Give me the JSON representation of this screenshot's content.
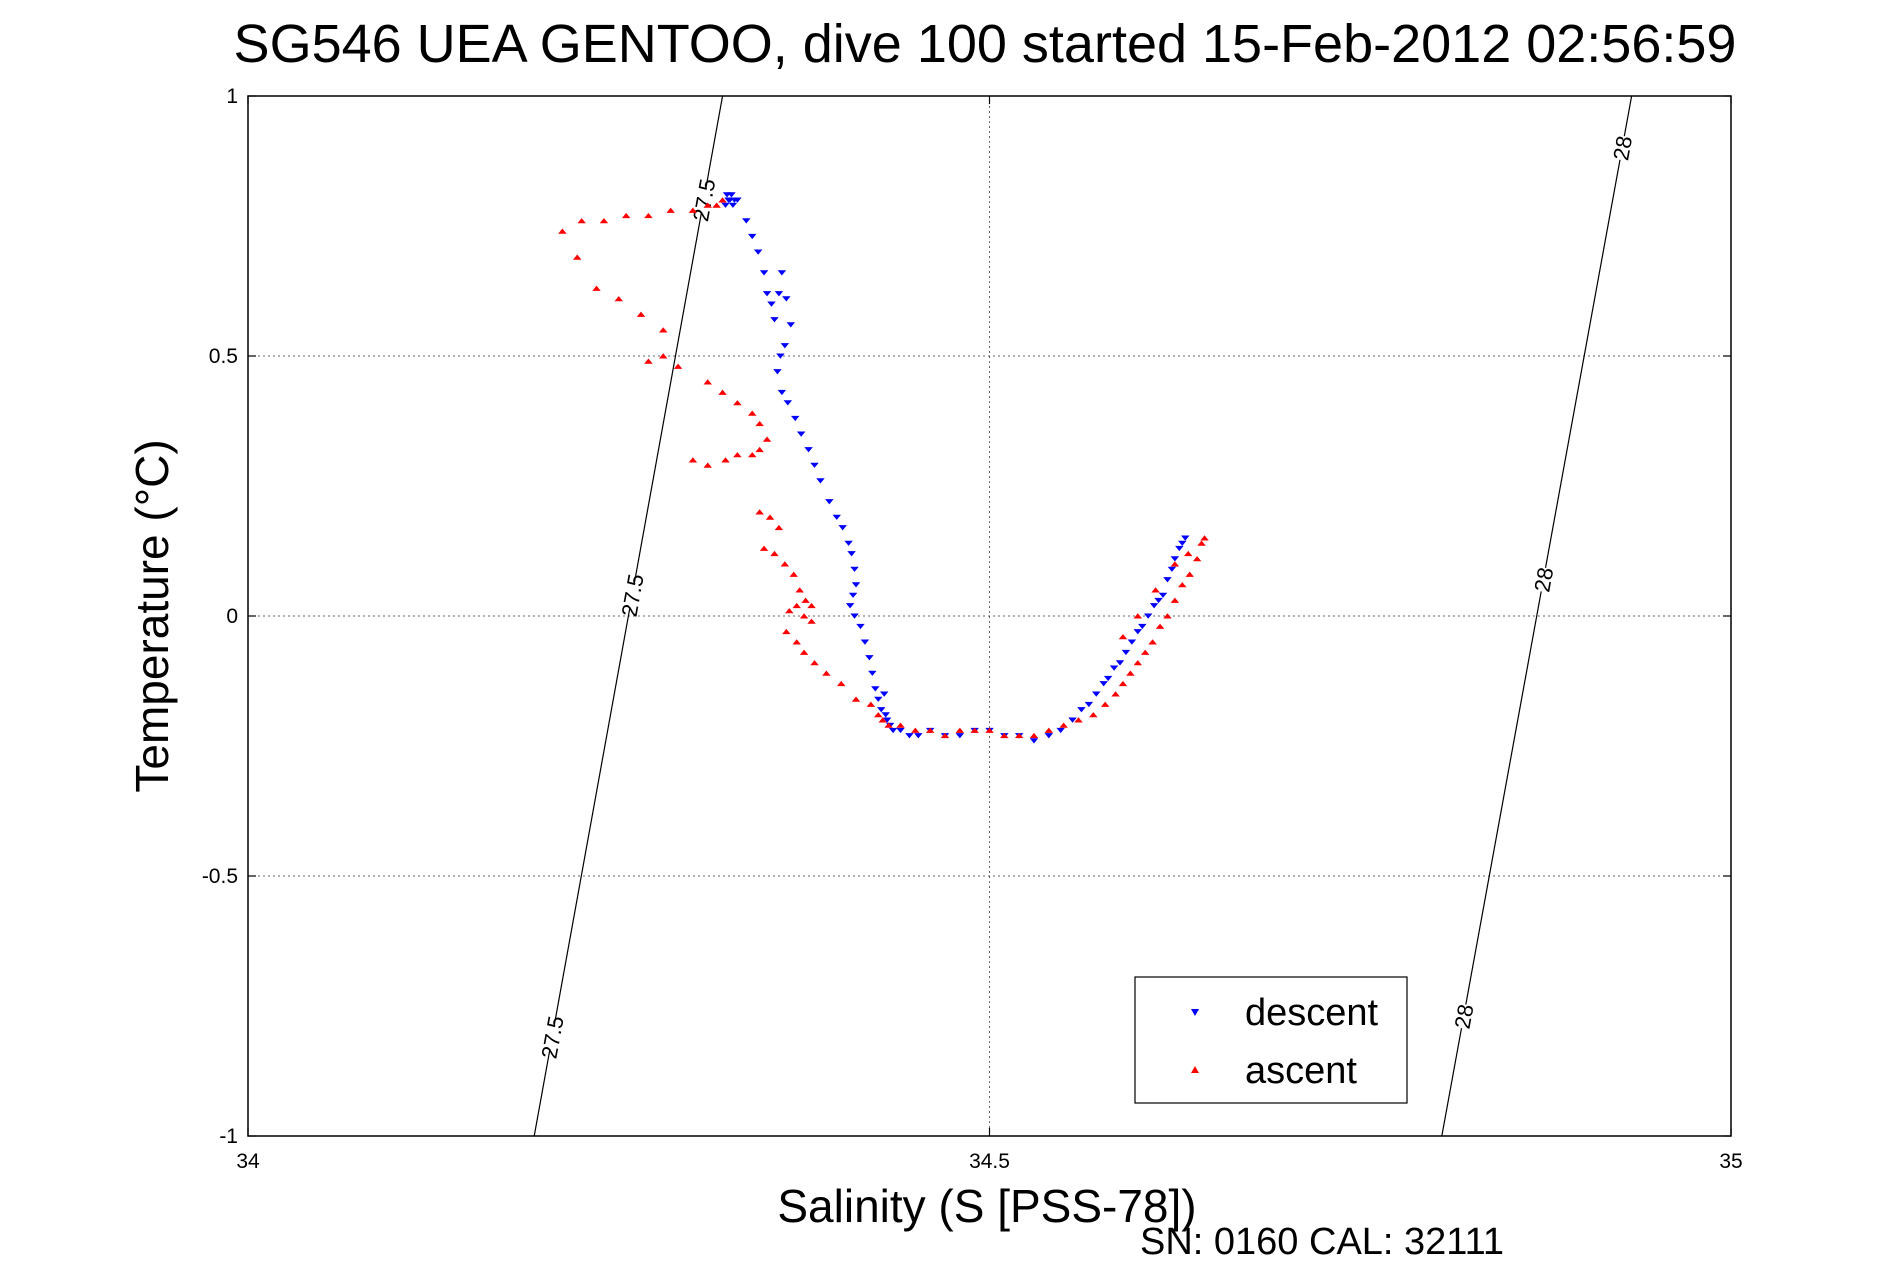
{
  "chart_data": {
    "type": "scatter",
    "title": "SG546 UEA GENTOO, dive 100 started 15-Feb-2012 02:56:59",
    "xlabel": "Salinity (S [PSS-78])",
    "ylabel": "Temperature (°C)",
    "xlim": [
      34,
      35
    ],
    "ylim": [
      -1,
      1
    ],
    "xticks": [
      34,
      34.5,
      35
    ],
    "xtick_labels": [
      "34",
      "34.5",
      "35"
    ],
    "yticks": [
      -1,
      -0.5,
      0,
      0.5,
      1
    ],
    "ytick_labels": [
      "-1",
      "-0.5",
      "0",
      "0.5",
      "1"
    ],
    "grid": true,
    "legend_position": "bottom-right",
    "footer": "SN: 0160  CAL: 32111",
    "density_contours": [
      {
        "label": "27.5",
        "points": [
          [
            34.193,
            -1
          ],
          [
            34.32,
            1
          ]
        ],
        "label_at_y": [
          0.8,
          0.04,
          -0.81
        ]
      },
      {
        "label": "28",
        "points": [
          [
            34.805,
            -1
          ],
          [
            34.933,
            1
          ]
        ],
        "label_at_y": [
          0.9,
          0.07,
          -0.77
        ]
      }
    ],
    "series": [
      {
        "name": "descent",
        "color": "#0000ff",
        "marker": "triangle-down",
        "x": [
          34.323,
          34.324,
          34.326,
          34.328,
          34.322,
          34.325,
          34.327,
          34.33,
          34.336,
          34.34,
          34.344,
          34.348,
          34.35,
          34.353,
          34.355,
          34.358,
          34.36,
          34.363,
          34.366,
          34.362,
          34.359,
          34.357,
          34.36,
          34.364,
          34.369,
          34.373,
          34.378,
          34.382,
          34.386,
          34.392,
          34.397,
          34.401,
          34.405,
          34.407,
          34.409,
          34.41,
          34.408,
          34.406,
          34.409,
          34.413,
          34.416,
          34.419,
          34.421,
          34.423,
          34.425,
          34.427,
          34.429,
          34.43,
          34.431,
          34.433,
          34.435,
          34.44,
          34.446,
          34.452,
          34.46,
          34.47,
          34.48,
          34.49,
          34.5,
          34.51,
          34.52,
          34.53,
          34.54,
          34.548,
          34.556,
          34.562,
          34.567,
          34.572,
          34.577,
          34.58,
          34.584,
          34.588,
          34.592,
          34.596,
          34.6,
          34.603,
          34.607,
          34.611,
          34.614,
          34.617,
          34.62,
          34.623,
          34.625,
          34.628,
          34.63,
          34.632
        ],
        "y": [
          0.81,
          0.8,
          0.81,
          0.8,
          0.79,
          0.8,
          0.79,
          0.8,
          0.76,
          0.73,
          0.7,
          0.66,
          0.62,
          0.6,
          0.57,
          0.62,
          0.66,
          0.61,
          0.56,
          0.52,
          0.5,
          0.47,
          0.43,
          0.41,
          0.38,
          0.35,
          0.32,
          0.29,
          0.26,
          0.22,
          0.19,
          0.17,
          0.14,
          0.12,
          0.09,
          0.06,
          0.04,
          0.02,
          0.0,
          -0.02,
          -0.05,
          -0.08,
          -0.11,
          -0.14,
          -0.16,
          -0.18,
          -0.15,
          -0.19,
          -0.2,
          -0.21,
          -0.22,
          -0.22,
          -0.23,
          -0.23,
          -0.22,
          -0.23,
          -0.23,
          -0.22,
          -0.22,
          -0.23,
          -0.23,
          -0.24,
          -0.23,
          -0.22,
          -0.2,
          -0.18,
          -0.17,
          -0.15,
          -0.13,
          -0.12,
          -0.1,
          -0.09,
          -0.07,
          -0.05,
          -0.03,
          -0.02,
          0.0,
          0.02,
          0.03,
          0.04,
          0.07,
          0.09,
          0.11,
          0.13,
          0.14,
          0.15
        ]
      },
      {
        "name": "ascent",
        "color": "#ff0000",
        "marker": "triangle-up",
        "x": [
          34.32,
          34.316,
          34.31,
          34.3,
          34.285,
          34.27,
          34.255,
          34.24,
          34.225,
          34.212,
          34.222,
          34.235,
          34.25,
          34.265,
          34.28,
          34.28,
          34.27,
          34.29,
          34.31,
          34.32,
          34.33,
          34.34,
          34.345,
          34.35,
          34.345,
          34.34,
          34.33,
          34.322,
          34.31,
          34.3,
          34.345,
          34.352,
          34.358,
          34.348,
          34.355,
          34.362,
          34.368,
          34.372,
          34.376,
          34.38,
          34.37,
          34.365,
          34.375,
          34.38,
          34.363,
          34.37,
          34.375,
          34.382,
          34.39,
          34.4,
          34.41,
          34.42,
          34.425,
          34.428,
          34.432,
          34.44,
          34.45,
          34.46,
          34.47,
          34.48,
          34.49,
          34.5,
          34.51,
          34.52,
          34.53,
          34.54,
          34.55,
          34.56,
          34.57,
          34.578,
          34.585,
          34.59,
          34.595,
          34.6,
          34.605,
          34.61,
          34.615,
          34.62,
          34.625,
          34.63,
          34.635,
          34.64,
          34.643,
          34.645,
          34.634,
          34.625,
          34.612,
          34.6,
          34.59
        ],
        "y": [
          0.8,
          0.79,
          0.79,
          0.78,
          0.78,
          0.77,
          0.77,
          0.76,
          0.76,
          0.74,
          0.69,
          0.63,
          0.61,
          0.58,
          0.55,
          0.5,
          0.49,
          0.48,
          0.45,
          0.43,
          0.41,
          0.39,
          0.37,
          0.34,
          0.32,
          0.31,
          0.31,
          0.3,
          0.29,
          0.3,
          0.2,
          0.19,
          0.17,
          0.13,
          0.12,
          0.1,
          0.08,
          0.05,
          0.03,
          0.02,
          0.02,
          0.01,
          0.0,
          -0.01,
          -0.03,
          -0.05,
          -0.07,
          -0.09,
          -0.11,
          -0.13,
          -0.16,
          -0.17,
          -0.19,
          -0.2,
          -0.21,
          -0.21,
          -0.22,
          -0.22,
          -0.23,
          -0.22,
          -0.22,
          -0.22,
          -0.23,
          -0.23,
          -0.23,
          -0.22,
          -0.21,
          -0.2,
          -0.19,
          -0.17,
          -0.15,
          -0.13,
          -0.11,
          -0.09,
          -0.07,
          -0.05,
          -0.02,
          0.0,
          0.03,
          0.06,
          0.08,
          0.11,
          0.14,
          0.15,
          0.12,
          0.1,
          0.05,
          0.0,
          -0.04
        ]
      }
    ]
  }
}
